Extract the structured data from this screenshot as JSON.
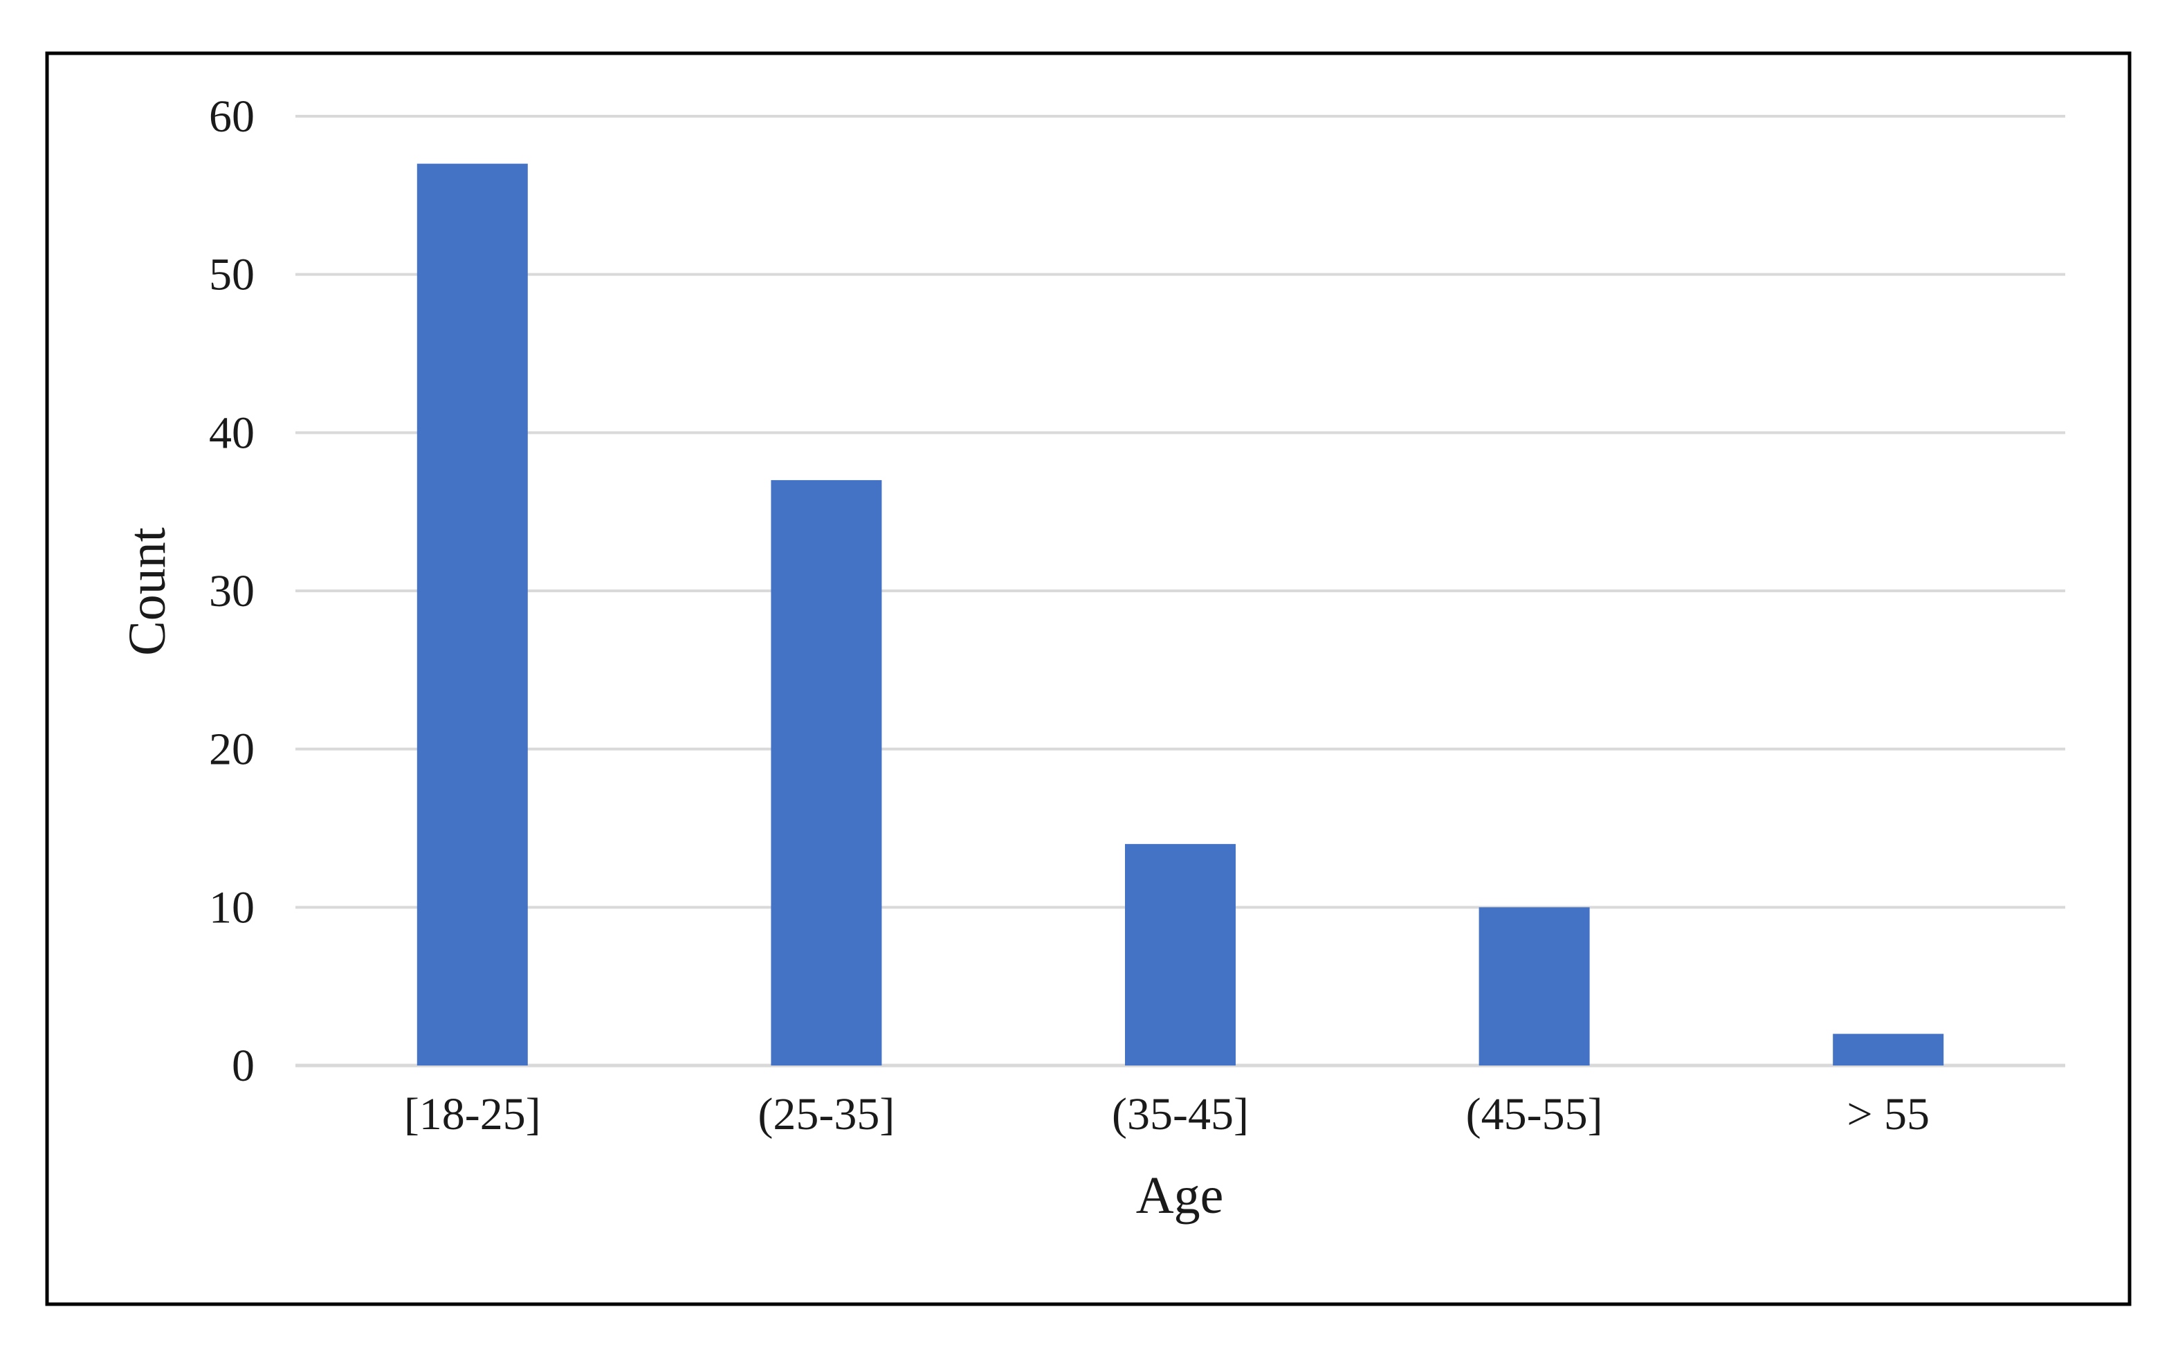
{
  "chart_data": {
    "type": "bar",
    "categories": [
      "[18-25]",
      "(25-35]",
      "(35-45]",
      "(45-55]",
      "> 55"
    ],
    "values": [
      57,
      37,
      14,
      10,
      2
    ],
    "title": "",
    "xlabel": "Age",
    "ylabel": "Count",
    "ylim": [
      0,
      60
    ],
    "yticks": [
      0,
      10,
      20,
      30,
      40,
      50,
      60
    ],
    "grid": true,
    "legend": "none",
    "bar_color": "#4472C4",
    "grid_color": "#d9d9d9",
    "frame_color": "#000000"
  }
}
